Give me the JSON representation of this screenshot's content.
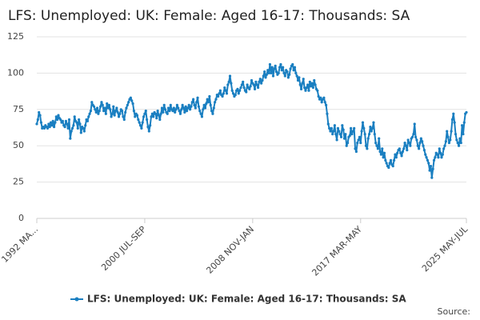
{
  "chart_data": {
    "type": "line",
    "title": "LFS: Unemployed: UK: Female: Aged 16-17: Thousands: SA",
    "source": "Source:",
    "categories": [
      "1992 MA...",
      null,
      null,
      null,
      null,
      null,
      null,
      null,
      null,
      null,
      null,
      null,
      null,
      null,
      null,
      null,
      null,
      null,
      null,
      null,
      null,
      null,
      null,
      null,
      null,
      null,
      null,
      null,
      null,
      null,
      null,
      null,
      null,
      null,
      null,
      null,
      null,
      null,
      null,
      null,
      null,
      null,
      null,
      null,
      null,
      null,
      null,
      null,
      null,
      null,
      null,
      null,
      null,
      null,
      null,
      null,
      null,
      null,
      null,
      null,
      null,
      null,
      null,
      null,
      null,
      null,
      null,
      null,
      null,
      null,
      null,
      null,
      null,
      null,
      null,
      null,
      null,
      null,
      null,
      null,
      null,
      null,
      null,
      null,
      null,
      null,
      null,
      null,
      null,
      null,
      null,
      null,
      null,
      null,
      null,
      null,
      null,
      null,
      null,
      null,
      "2000 JUL-SEP",
      null,
      null,
      null,
      null,
      null,
      null,
      null,
      null,
      null,
      null,
      null,
      null,
      null,
      null,
      null,
      null,
      null,
      null,
      null,
      null,
      null,
      null,
      null,
      null,
      null,
      null,
      null,
      null,
      null,
      null,
      null,
      null,
      null,
      null,
      null,
      null,
      null,
      null,
      null,
      null,
      null,
      null,
      null,
      null,
      null,
      null,
      null,
      null,
      null,
      null,
      null,
      null,
      null,
      null,
      null,
      null,
      null,
      null,
      null,
      null,
      null,
      null,
      null,
      null,
      null,
      null,
      null,
      null,
      null,
      null,
      null,
      null,
      null,
      null,
      null,
      null,
      null,
      null,
      null,
      null,
      null,
      null,
      null,
      null,
      null,
      null,
      null,
      null,
      null,
      null,
      null,
      null,
      null,
      null,
      null,
      null,
      null,
      null,
      null,
      "2008 NOV-JAN",
      null,
      null,
      null,
      null,
      null,
      null,
      null,
      null,
      null,
      null,
      null,
      null,
      null,
      null,
      null,
      null,
      null,
      null,
      null,
      null,
      null,
      null,
      null,
      null,
      null,
      null,
      null,
      null,
      null,
      null,
      null,
      null,
      null,
      null,
      null,
      null,
      null,
      null,
      null,
      null,
      null,
      null,
      null,
      null,
      null,
      null,
      null,
      null,
      null,
      null,
      null,
      null,
      null,
      null,
      null,
      null,
      null,
      null,
      null,
      null,
      null,
      null,
      null,
      null,
      null,
      null,
      null,
      null,
      null,
      null,
      null,
      null,
      null,
      null,
      null,
      null,
      null,
      null,
      null,
      null,
      null,
      null,
      null,
      null,
      null,
      null,
      null,
      null,
      null,
      null,
      null,
      null,
      null,
      null,
      null,
      null,
      null,
      null,
      null,
      "2017 MAR-MAY",
      null,
      null,
      null,
      null,
      null,
      null,
      null,
      null,
      null,
      null,
      null,
      null,
      null,
      null,
      null,
      null,
      null,
      null,
      null,
      null,
      null,
      null,
      null,
      null,
      null,
      null,
      null,
      null,
      null,
      null,
      null,
      null,
      null,
      null,
      null,
      null,
      null,
      null,
      null,
      null,
      null,
      null,
      null,
      null,
      null,
      null,
      null,
      null,
      null,
      null,
      null,
      null,
      null,
      null,
      null,
      null,
      null,
      null,
      null,
      null,
      null,
      null,
      null,
      null,
      null,
      null,
      null,
      null,
      null,
      null,
      null,
      null,
      null,
      null,
      null,
      null,
      null,
      null,
      null,
      null,
      null,
      null,
      null,
      null,
      null,
      null,
      null,
      null,
      null,
      null,
      null,
      null,
      null,
      null,
      null,
      null,
      null,
      "2025 MAY-JUL"
    ],
    "series": [
      {
        "name": "LFS: Unemployed: UK: Female: Aged 16-17: Thousands: SA",
        "color": "#1a7fc1",
        "values": [
          65,
          68,
          73,
          71,
          66,
          62,
          63,
          62,
          64,
          63,
          62,
          65,
          63,
          66,
          64,
          67,
          63,
          66,
          70,
          68,
          71,
          69,
          68,
          66,
          67,
          64,
          63,
          67,
          65,
          62,
          68,
          55,
          60,
          62,
          64,
          70,
          67,
          66,
          62,
          68,
          65,
          59,
          63,
          62,
          60,
          64,
          68,
          67,
          70,
          72,
          74,
          80,
          78,
          77,
          75,
          73,
          76,
          72,
          74,
          77,
          80,
          78,
          74,
          76,
          72,
          79,
          76,
          78,
          75,
          70,
          72,
          77,
          71,
          74,
          76,
          73,
          70,
          72,
          75,
          74,
          70,
          68,
          73,
          76,
          78,
          80,
          82,
          83,
          81,
          79,
          74,
          70,
          72,
          71,
          68,
          66,
          64,
          62,
          66,
          70,
          72,
          74,
          68,
          63,
          60,
          64,
          70,
          72,
          70,
          73,
          72,
          69,
          74,
          71,
          68,
          72,
          76,
          73,
          78,
          75,
          73,
          72,
          76,
          74,
          78,
          75,
          74,
          76,
          73,
          75,
          78,
          76,
          74,
          72,
          75,
          78,
          76,
          73,
          77,
          74,
          76,
          78,
          75,
          77,
          80,
          82,
          78,
          76,
          80,
          83,
          77,
          74,
          72,
          70,
          75,
          78,
          76,
          79,
          82,
          80,
          84,
          78,
          74,
          72,
          76,
          80,
          82,
          85,
          84,
          86,
          88,
          85,
          84,
          86,
          90,
          88,
          86,
          92,
          94,
          98,
          93,
          88,
          86,
          84,
          85,
          88,
          89,
          86,
          88,
          90,
          92,
          94,
          90,
          88,
          87,
          92,
          90,
          89,
          91,
          95,
          93,
          92,
          89,
          94,
          92,
          90,
          94,
          96,
          93,
          95,
          98,
          101,
          97,
          99,
          102,
          100,
          106,
          100,
          104,
          98,
          103,
          105,
          101,
          99,
          100,
          104,
          106,
          102,
          104,
          100,
          98,
          102,
          101,
          97,
          99,
          103,
          105,
          106,
          102,
          104,
          100,
          98,
          95,
          97,
          92,
          89,
          93,
          96,
          90,
          88,
          90,
          92,
          88,
          94,
          91,
          93,
          90,
          95,
          92,
          89,
          88,
          84,
          82,
          83,
          80,
          82,
          83,
          80,
          78,
          72,
          65,
          62,
          60,
          62,
          58,
          60,
          64,
          58,
          54,
          62,
          60,
          58,
          56,
          64,
          61,
          55,
          58,
          50,
          52,
          56,
          57,
          62,
          58,
          60,
          62,
          48,
          46,
          52,
          54,
          56,
          52,
          60,
          66,
          62,
          58,
          50,
          48,
          55,
          58,
          63,
          60,
          62,
          66,
          58,
          52,
          50,
          48,
          55,
          46,
          44,
          48,
          42,
          45,
          40,
          38,
          36,
          35,
          38,
          40,
          37,
          36,
          40,
          44,
          42,
          45,
          47,
          48,
          45,
          43,
          46,
          48,
          52,
          50,
          47,
          54,
          52,
          50,
          55,
          56,
          58,
          65,
          56,
          54,
          50,
          48,
          52,
          55,
          53,
          50,
          47,
          44,
          42,
          40,
          38,
          33,
          36,
          28,
          34,
          40,
          42,
          45,
          44,
          42,
          48,
          45,
          42,
          44,
          48,
          50,
          53,
          60,
          56,
          52,
          54,
          60,
          68,
          72,
          66,
          58,
          54,
          52,
          50,
          55,
          52,
          64,
          58,
          66,
          72,
          73
        ]
      }
    ],
    "ylim": [
      0,
      125
    ],
    "yticks": [
      0,
      25,
      50,
      75,
      100,
      125
    ],
    "grid": true
  }
}
